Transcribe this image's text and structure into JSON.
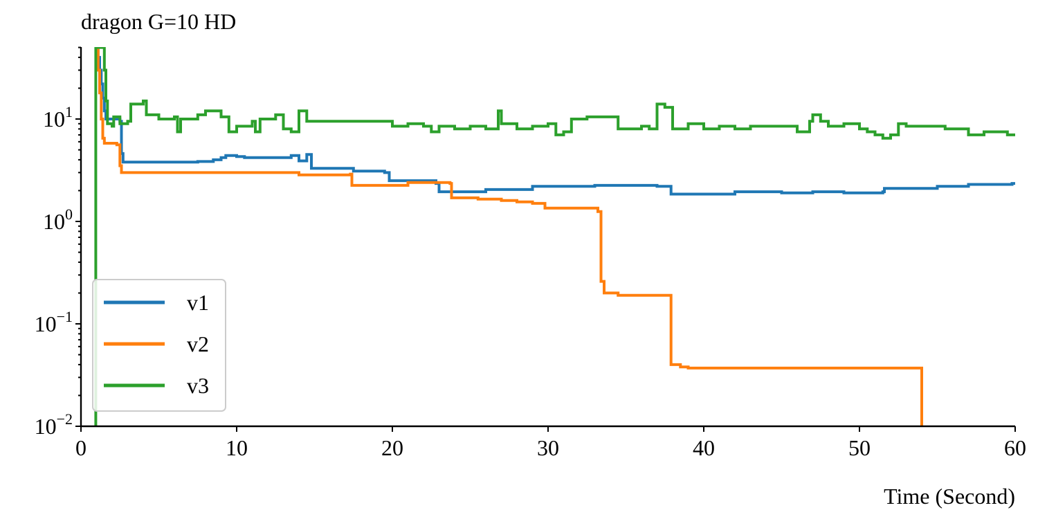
{
  "chart_data": {
    "type": "line",
    "title": "dragon G=10 HD",
    "xlabel": "Time (Second)",
    "ylabel": "",
    "xlim": [
      0,
      60
    ],
    "ylim": [
      0.01,
      50
    ],
    "yscale": "log",
    "grid": false,
    "legend_placement": "lower-left",
    "x_ticks": [
      0,
      10,
      20,
      30,
      40,
      50,
      60
    ],
    "x_tick_labels": [
      "0",
      "10",
      "20",
      "30",
      "40",
      "50",
      "60"
    ],
    "y_ticks": [
      0.01,
      0.1,
      1,
      10
    ],
    "y_tick_labels": [
      {
        "base": "10",
        "exp": "−2"
      },
      {
        "base": "10",
        "exp": "−1"
      },
      {
        "base": "10",
        "exp": "0"
      },
      {
        "base": "10",
        "exp": "1"
      }
    ],
    "series": [
      {
        "name": "v1",
        "color": "#1f77b4",
        "step": true,
        "points": [
          [
            1.0,
            50
          ],
          [
            1.1,
            40
          ],
          [
            1.2,
            30
          ],
          [
            1.3,
            22
          ],
          [
            1.4,
            16
          ],
          [
            1.5,
            12
          ],
          [
            1.6,
            10
          ],
          [
            2.5,
            9.5
          ],
          [
            2.6,
            4.6
          ],
          [
            2.7,
            3.8
          ],
          [
            7.5,
            3.85
          ],
          [
            8.5,
            4.0
          ],
          [
            9.0,
            4.2
          ],
          [
            9.3,
            4.4
          ],
          [
            10.0,
            4.3
          ],
          [
            10.5,
            4.2
          ],
          [
            13.5,
            4.4
          ],
          [
            14.0,
            3.9
          ],
          [
            14.5,
            4.5
          ],
          [
            14.8,
            3.3
          ],
          [
            17.5,
            3.1
          ],
          [
            19.5,
            3.0
          ],
          [
            19.8,
            2.5
          ],
          [
            22.5,
            2.5
          ],
          [
            22.8,
            2.35
          ],
          [
            23.0,
            1.95
          ],
          [
            24.5,
            1.95
          ],
          [
            26.0,
            2.05
          ],
          [
            29.0,
            2.2
          ],
          [
            33.0,
            2.25
          ],
          [
            37.0,
            2.2
          ],
          [
            37.9,
            1.85
          ],
          [
            42.0,
            1.95
          ],
          [
            45.0,
            1.9
          ],
          [
            47.0,
            1.95
          ],
          [
            49.0,
            1.9
          ],
          [
            51.5,
            1.95
          ],
          [
            51.6,
            2.1
          ],
          [
            55.0,
            2.2
          ],
          [
            57.0,
            2.3
          ],
          [
            59.8,
            2.35
          ],
          [
            60.0,
            2.4
          ]
        ]
      },
      {
        "name": "v2",
        "color": "#ff7f0e",
        "step": true,
        "points": [
          [
            1.0,
            50
          ],
          [
            1.1,
            30
          ],
          [
            1.2,
            18
          ],
          [
            1.3,
            10
          ],
          [
            1.4,
            6.5
          ],
          [
            1.5,
            5.8
          ],
          [
            2.3,
            5.6
          ],
          [
            2.5,
            3.5
          ],
          [
            2.6,
            3.0
          ],
          [
            10.0,
            3.0
          ],
          [
            14.0,
            2.85
          ],
          [
            17.3,
            2.9
          ],
          [
            17.4,
            2.25
          ],
          [
            21.0,
            2.4
          ],
          [
            23.7,
            2.35
          ],
          [
            23.8,
            1.7
          ],
          [
            25.5,
            1.65
          ],
          [
            27.0,
            1.6
          ],
          [
            28.0,
            1.55
          ],
          [
            29.0,
            1.5
          ],
          [
            29.8,
            1.35
          ],
          [
            33.2,
            1.25
          ],
          [
            33.4,
            0.26
          ],
          [
            33.6,
            0.2
          ],
          [
            34.5,
            0.19
          ],
          [
            37.8,
            0.19
          ],
          [
            37.9,
            0.04
          ],
          [
            38.5,
            0.038
          ],
          [
            39.0,
            0.037
          ],
          [
            53.9,
            0.037
          ],
          [
            54.0,
            0.01
          ]
        ]
      },
      {
        "name": "v3",
        "color": "#2ca02c",
        "step": true,
        "points": [
          [
            0.9,
            0.01
          ],
          [
            0.95,
            50
          ],
          [
            1.4,
            50
          ],
          [
            1.5,
            30
          ],
          [
            1.6,
            15
          ],
          [
            1.7,
            9
          ],
          [
            2.0,
            8.5
          ],
          [
            2.1,
            10.5
          ],
          [
            2.5,
            9
          ],
          [
            3.0,
            9.5
          ],
          [
            3.2,
            14
          ],
          [
            4.0,
            15
          ],
          [
            4.2,
            11
          ],
          [
            5.0,
            10
          ],
          [
            6.0,
            10.5
          ],
          [
            6.2,
            7.5
          ],
          [
            6.4,
            10
          ],
          [
            7.5,
            11
          ],
          [
            8.0,
            12
          ],
          [
            9.0,
            10.5
          ],
          [
            9.5,
            7.5
          ],
          [
            10.0,
            8.5
          ],
          [
            11.0,
            9.5
          ],
          [
            11.2,
            7.5
          ],
          [
            11.5,
            10
          ],
          [
            12.0,
            10
          ],
          [
            12.5,
            11
          ],
          [
            13.0,
            8
          ],
          [
            13.5,
            7.5
          ],
          [
            14.0,
            12
          ],
          [
            14.5,
            9.5
          ],
          [
            17.0,
            9.5
          ],
          [
            19.0,
            9.5
          ],
          [
            20.0,
            8.5
          ],
          [
            21.0,
            9
          ],
          [
            22.0,
            8.5
          ],
          [
            22.5,
            7.5
          ],
          [
            23.0,
            8.5
          ],
          [
            24.0,
            8
          ],
          [
            25.0,
            8.5
          ],
          [
            26.0,
            8
          ],
          [
            26.8,
            12
          ],
          [
            27.0,
            9
          ],
          [
            28.0,
            8
          ],
          [
            29.0,
            8.5
          ],
          [
            30.0,
            9
          ],
          [
            30.5,
            7
          ],
          [
            31.0,
            7.5
          ],
          [
            31.5,
            10
          ],
          [
            32.5,
            10.5
          ],
          [
            34.0,
            10.5
          ],
          [
            34.5,
            8
          ],
          [
            36.0,
            8.5
          ],
          [
            36.5,
            8
          ],
          [
            37.0,
            14
          ],
          [
            37.5,
            13
          ],
          [
            38.0,
            8
          ],
          [
            39.0,
            9
          ],
          [
            40.0,
            8
          ],
          [
            41.0,
            8.5
          ],
          [
            42.0,
            8
          ],
          [
            43.0,
            8.5
          ],
          [
            45.0,
            8.5
          ],
          [
            46.0,
            7.5
          ],
          [
            46.8,
            9.5
          ],
          [
            47.0,
            11
          ],
          [
            47.5,
            9.5
          ],
          [
            48.0,
            8.5
          ],
          [
            49.0,
            9
          ],
          [
            50.0,
            8
          ],
          [
            50.5,
            7.5
          ],
          [
            51.0,
            7
          ],
          [
            51.5,
            6.5
          ],
          [
            52.0,
            7
          ],
          [
            52.5,
            9
          ],
          [
            53.0,
            8.5
          ],
          [
            54.0,
            8.5
          ],
          [
            55.5,
            8
          ],
          [
            57.0,
            7
          ],
          [
            58.0,
            7.5
          ],
          [
            59.5,
            7
          ],
          [
            60.0,
            6.8
          ]
        ]
      }
    ]
  }
}
